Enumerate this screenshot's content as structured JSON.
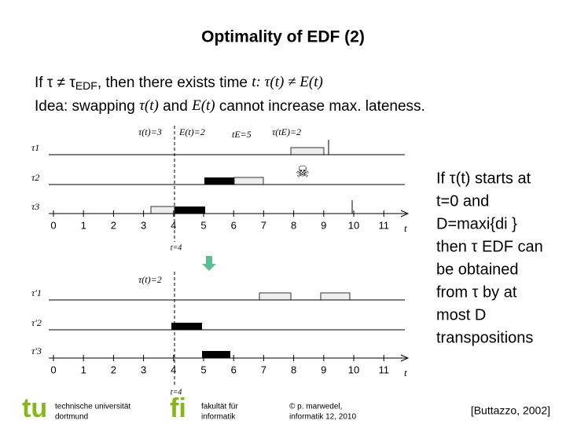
{
  "title": "Optimality of EDF (2)",
  "line1": [
    "If τ ≠ τ",
    "EDF",
    ", then there exists time ",
    "t: τ(t) ≠ E(t)"
  ],
  "line2": [
    "Idea: swapping ",
    "τ(t)",
    " and ",
    "E(t)",
    " cannot increase max. lateness."
  ],
  "side": [
    "If τ(t) starts at",
    "t=0 and",
    "D=maxi{di }",
    "then τ EDF can",
    "be obtained",
    "from τ by at",
    "most D",
    "transpositions"
  ],
  "top_diagram": {
    "annotations": [
      "τ(t)=3",
      "E(t)=2",
      "tE=5",
      "τ(tE)=2"
    ],
    "row_labels": [
      "τ1",
      "τ2",
      "τ3"
    ],
    "ticks": [
      0,
      1,
      2,
      3,
      4,
      5,
      6,
      7,
      8,
      9,
      10,
      11
    ],
    "axis_label": "t",
    "marker": "t=4"
  },
  "bottom_diagram": {
    "annotations": [
      "τ(t)=2"
    ],
    "row_labels": [
      "τ'1",
      "τ'2",
      "τ'3"
    ],
    "ticks": [
      0,
      1,
      2,
      3,
      4,
      5,
      6,
      7,
      8,
      9,
      10,
      11
    ],
    "axis_label": "t",
    "marker": "t=4"
  },
  "footer": {
    "university": [
      "technische universität",
      "dortmund"
    ],
    "faculty": [
      "fakultät für",
      "informatik"
    ],
    "copyright": [
      "© p. marwedel,",
      "informatik 12, 2010"
    ],
    "citation": "[Buttazzo, 2002]"
  }
}
